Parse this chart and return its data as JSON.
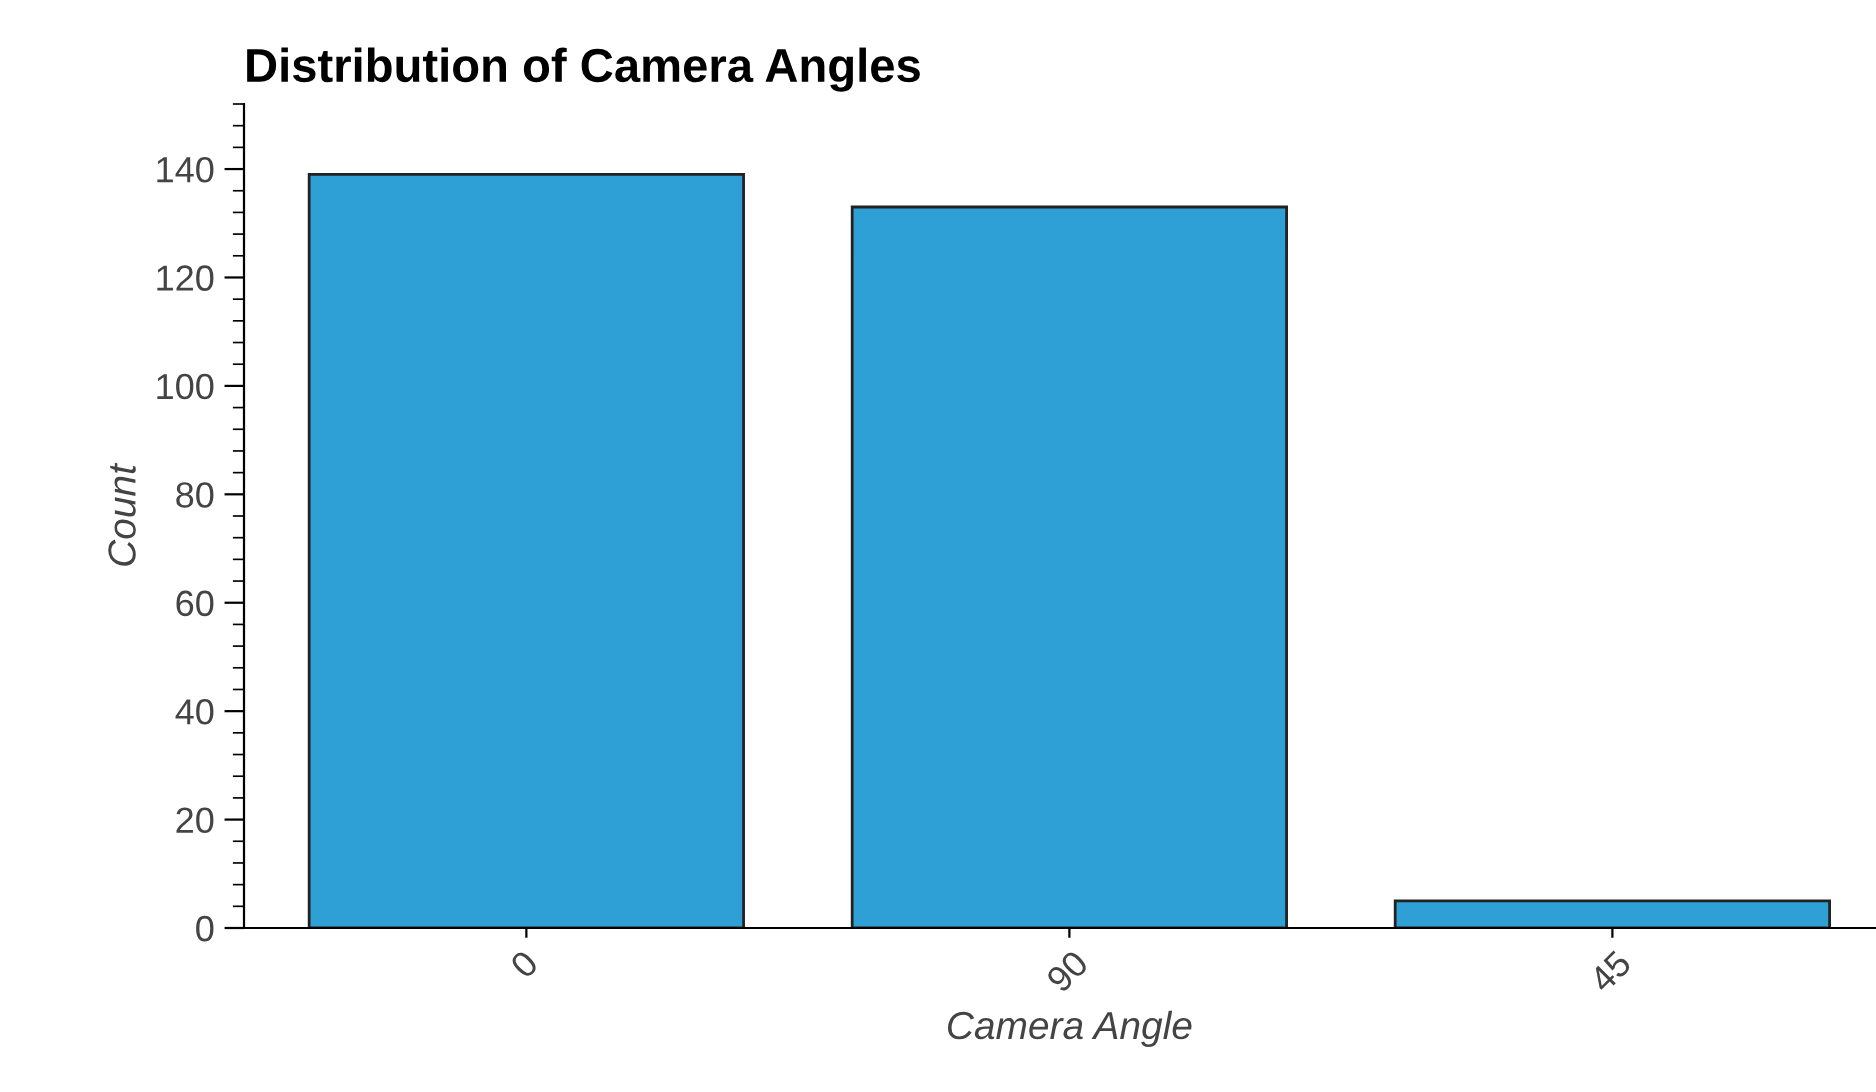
{
  "chart_data": {
    "type": "bar",
    "title": "Distribution of Camera Angles",
    "xlabel": "Camera Angle",
    "ylabel": "Count",
    "categories": [
      "0",
      "90",
      "45"
    ],
    "values": [
      139,
      133,
      5
    ],
    "color": "#2ea0d6",
    "ylim": [
      0,
      152
    ],
    "yticks": [
      0,
      20,
      40,
      60,
      80,
      100,
      120,
      140
    ],
    "grid": false,
    "legend": false
  }
}
